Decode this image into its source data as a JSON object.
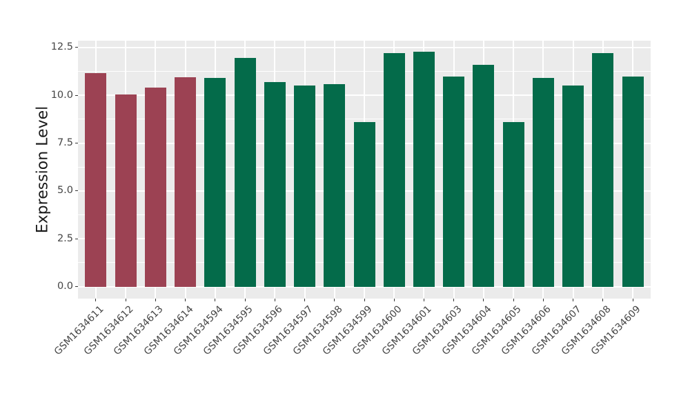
{
  "chart_data": {
    "type": "bar",
    "title": "",
    "xlabel": "",
    "ylabel": "Expression Level",
    "categories": [
      "GSM1634611",
      "GSM1634612",
      "GSM1634613",
      "GSM1634614",
      "GSM1634594",
      "GSM1634595",
      "GSM1634596",
      "GSM1634597",
      "GSM1634598",
      "GSM1634599",
      "GSM1634600",
      "GSM1634601",
      "GSM1634603",
      "GSM1634604",
      "GSM1634605",
      "GSM1634606",
      "GSM1634607",
      "GSM1634608",
      "GSM1634609"
    ],
    "values": [
      11.15,
      10.05,
      10.4,
      10.95,
      10.9,
      11.95,
      10.7,
      10.5,
      10.6,
      8.6,
      12.2,
      12.3,
      11.0,
      11.6,
      8.6,
      10.9,
      10.5,
      12.2,
      11.0
    ],
    "bar_colors": [
      "#9C4253",
      "#9C4253",
      "#9C4253",
      "#9C4253",
      "#046B4A",
      "#046B4A",
      "#046B4A",
      "#046B4A",
      "#046B4A",
      "#046B4A",
      "#046B4A",
      "#046B4A",
      "#046B4A",
      "#046B4A",
      "#046B4A",
      "#046B4A",
      "#046B4A",
      "#046B4A",
      "#046B4A"
    ],
    "palette": {
      "maroon_group": "#9C4253",
      "green_group": "#046B4A"
    },
    "ylim": [
      -0.63,
      12.86
    ],
    "yticks": [
      0,
      2.5,
      5,
      7.5,
      10,
      12.5
    ],
    "ytick_labels": [
      "0.0",
      "2.5",
      "5.0",
      "7.5",
      "10.0",
      "12.5"
    ],
    "yticks_minor": [
      1.25,
      3.75,
      6.25,
      8.75,
      11.25
    ],
    "grid": true,
    "legend_position": "none",
    "panel_bg": "#EBEBEB",
    "grid_color": "#FFFFFF",
    "tick_text_color": "#454545"
  }
}
